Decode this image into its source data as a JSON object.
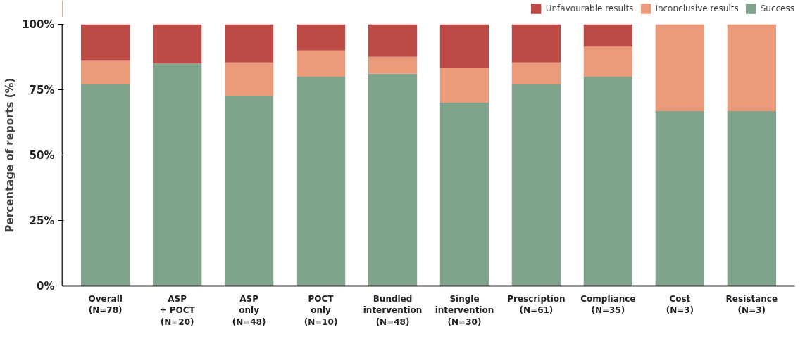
{
  "chart_data": {
    "type": "bar",
    "stacked": true,
    "ylabel": "Percentage of reports (%)",
    "categories": [
      "Overall\n(N=78)",
      "ASP\n+ POCT\n(N=20)",
      "ASP\nonly\n(N=48)",
      "POCT\nonly\n(N=10)",
      "Bundled\nintervention\n(N=48)",
      "Single\nintervention\n(N=30)",
      "Prescription\n(N=61)",
      "Compliance\n(N=35)",
      "Cost\n(N=3)",
      "Resistance\n(N=3)"
    ],
    "series": [
      {
        "name": "Success",
        "color": "#7fa38b",
        "values": [
          77.0,
          85.0,
          72.7,
          80.0,
          81.1,
          70.0,
          77.0,
          80.0,
          66.8,
          66.8
        ]
      },
      {
        "name": "Inconclusive results",
        "color": "#eb9a7a",
        "values": [
          9.0,
          0,
          12.7,
          10.0,
          6.5,
          13.5,
          8.4,
          11.4,
          33.2,
          33.2
        ]
      },
      {
        "name": "Unfavourable results",
        "color": "#bd4a45",
        "values": [
          14.0,
          15.0,
          14.6,
          10.0,
          12.4,
          16.5,
          14.6,
          8.6,
          0,
          0
        ]
      }
    ],
    "ylim": [
      0,
      100
    ],
    "yticks": [
      {
        "value": 0,
        "label": "0%"
      },
      {
        "value": 25,
        "label": "25%"
      },
      {
        "value": 50,
        "label": "50%"
      },
      {
        "value": 75,
        "label": "75%"
      },
      {
        "value": 100,
        "label": "100%"
      }
    ],
    "grid": false,
    "legend": "top right"
  }
}
